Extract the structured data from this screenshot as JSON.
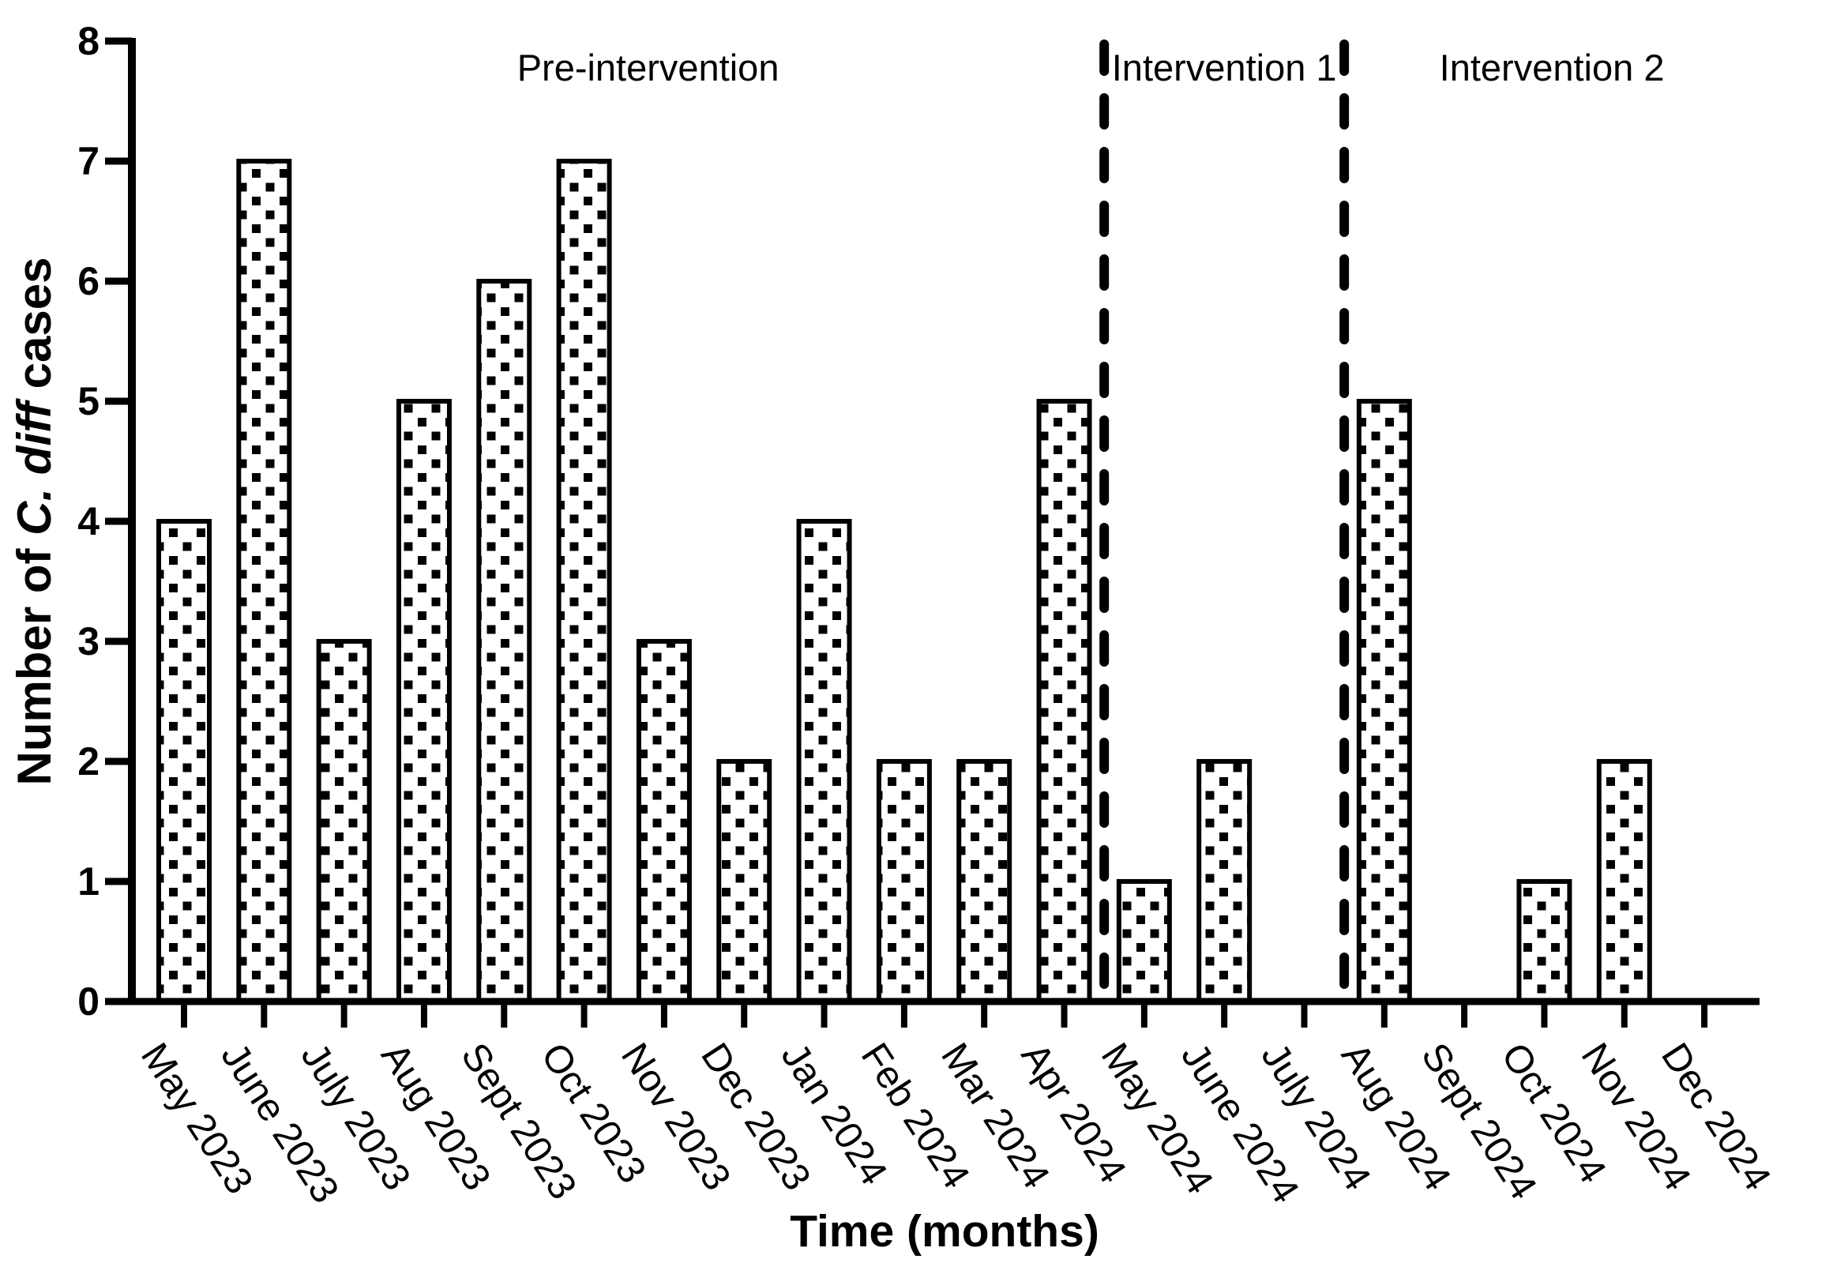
{
  "figure": {
    "background_color": "#ffffff",
    "ink_color": "#000000"
  },
  "chart_data": {
    "type": "bar",
    "title": "",
    "xlabel": "Time (months)",
    "ylabel": "Number of C. diff cases",
    "ylabel_parts": [
      "Number of ",
      "C. diff",
      " cases"
    ],
    "ylabel_italic_part_index": 1,
    "categories": [
      "May 2023",
      "June 2023",
      "July 2023",
      "Aug 2023",
      "Sept 2023",
      "Oct 2023",
      "Nov 2023",
      "Dec 2023",
      "Jan 2024",
      "Feb 2024",
      "Mar 2024",
      "Apr 2024",
      "May 2024",
      "June 2024",
      "July 2024",
      "Aug 2024",
      "Sept 2024",
      "Oct 2024",
      "Nov 2024",
      "Dec 2024"
    ],
    "values": [
      4,
      7,
      3,
      5,
      6,
      7,
      3,
      2,
      4,
      2,
      2,
      5,
      1,
      2,
      0,
      5,
      0,
      1,
      2,
      0
    ],
    "ylim": [
      0,
      8
    ],
    "ytick_values": [
      0,
      1,
      2,
      3,
      4,
      5,
      6,
      7,
      8
    ],
    "grid": false,
    "legend": "none",
    "bar_fill_style": "polka-dot-pattern",
    "bar_fill_color": "#000000",
    "bar_background_color": "#ffffff",
    "bar_border_color": "#000000",
    "separator_line_style": "dashed",
    "separators_after_index": [
      11,
      14
    ],
    "sections": [
      {
        "label": "Pre-intervention",
        "from_index": 0,
        "to_index": 11
      },
      {
        "label": "Intervention 1",
        "from_index": 12,
        "to_index": 14
      },
      {
        "label": "Intervention 2",
        "from_index": 15,
        "to_index": 19
      }
    ]
  }
}
